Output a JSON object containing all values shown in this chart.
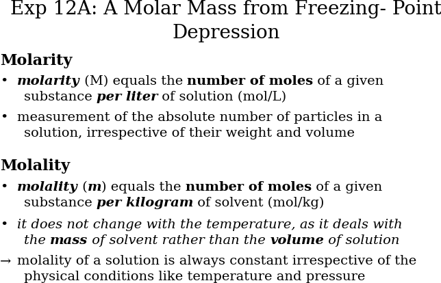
{
  "title_line1": "Exp 12A: A Molar Mass from Freezing- Point",
  "title_line2": "Depression",
  "background_color": "#ffffff",
  "text_color": "#000000",
  "title_fontsize": 20,
  "body_fontsize": 14,
  "heading_fontsize": 16
}
